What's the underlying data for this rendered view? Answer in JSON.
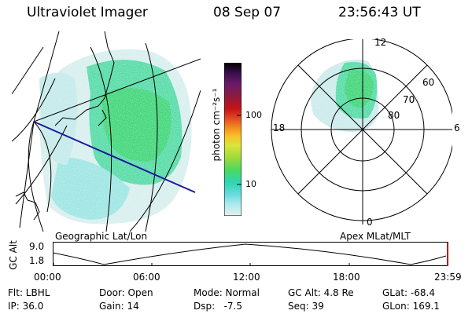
{
  "header": {
    "instrument": "Ultraviolet Imager",
    "date": "08 Sep 07",
    "time": "23:56:43 UT"
  },
  "colorbar": {
    "label": "photon cm⁻²s⁻¹",
    "ticks": [
      "100",
      "10"
    ],
    "colors": [
      "#000000",
      "#3b0f4f",
      "#6b1a6b",
      "#8e1a3f",
      "#c41414",
      "#e2452a",
      "#f08a1c",
      "#f6c12a",
      "#d8e53a",
      "#9fd93b",
      "#4cd860",
      "#2fd5b3",
      "#66dcdd",
      "#b3ecee",
      "#e6eeee"
    ]
  },
  "left_panel": {
    "caption": "Geographic Lat/Lon"
  },
  "right_panel": {
    "caption": "Apex MLat/MLT",
    "mlt_labels": [
      "12",
      "18",
      "6",
      "0"
    ],
    "lat_labels": [
      "60",
      "70",
      "80"
    ]
  },
  "altitude_plot": {
    "ylabel": "GC Alt",
    "ymax": "9.0",
    "ymin": "1.8",
    "x_ticks": [
      "00:00",
      "06:00",
      "12:00",
      "18:00",
      "23:59"
    ]
  },
  "footer": {
    "filter": "Flt: LBHL",
    "ip": "IP: 36.0",
    "door": "Door: Open",
    "gain": "Gain: 14",
    "mode": "Mode: Normal",
    "dsp": "Dsp:   -7.5",
    "gcalt": "GC Alt: 4.8 Re",
    "seq": "Seq: 39",
    "glat": "GLat: -68.4",
    "glon": "GLon: 169.1"
  }
}
